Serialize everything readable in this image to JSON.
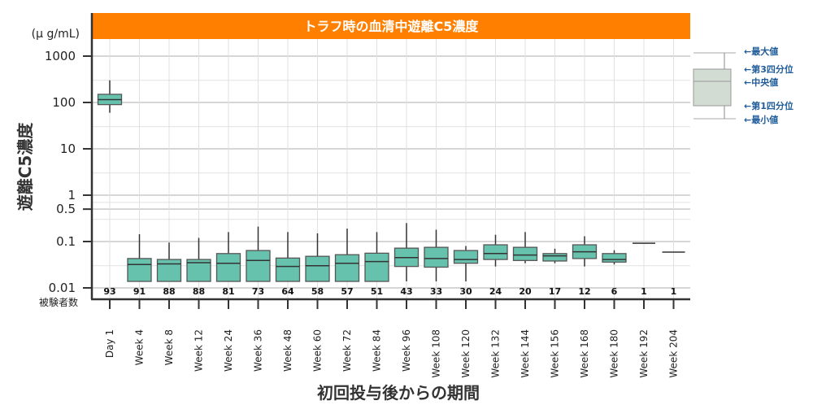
{
  "chart_data": {
    "type": "box",
    "title": "トラフ時の血清中遊離C5濃度",
    "xlabel": "初回投与後からの期間",
    "ylabel": "遊離C5濃度",
    "yunit": "(μ g/mL)",
    "yscale": "log",
    "ylim": [
      0.01,
      2000
    ],
    "yticks": [
      {
        "value": 1000,
        "label": "1000"
      },
      {
        "value": 100,
        "label": "100"
      },
      {
        "value": 10,
        "label": "10"
      },
      {
        "value": 1,
        "label": "1"
      },
      {
        "value": 0.5,
        "label": "0.5"
      },
      {
        "value": 0.1,
        "label": "0.1"
      },
      {
        "value": 0.01,
        "label": "0.01"
      }
    ],
    "grid": true,
    "subjects_label": "被験者数",
    "categories": [
      "Day 1",
      "Week 4",
      "Week 8",
      "Week 12",
      "Week 24",
      "Week 36",
      "Week 48",
      "Week 60",
      "Week 72",
      "Week 84",
      "Week 96",
      "Week 108",
      "Week 120",
      "Week 132",
      "Week 144",
      "Week 156",
      "Week 168",
      "Week 180",
      "Week 192",
      "Week 204"
    ],
    "n": [
      93,
      91,
      88,
      88,
      81,
      73,
      64,
      58,
      57,
      51,
      43,
      33,
      30,
      24,
      20,
      17,
      12,
      6,
      1,
      1
    ],
    "boxes": [
      {
        "min": 60,
        "q1": 90,
        "median": 115,
        "q3": 150,
        "max": 300
      },
      {
        "min": 0.0138,
        "q1": 0.0138,
        "median": 0.032,
        "q3": 0.043,
        "max": 0.144
      },
      {
        "min": 0.0138,
        "q1": 0.0138,
        "median": 0.033,
        "q3": 0.041,
        "max": 0.095
      },
      {
        "min": 0.0138,
        "q1": 0.0138,
        "median": 0.035,
        "q3": 0.041,
        "max": 0.12
      },
      {
        "min": 0.0138,
        "q1": 0.0138,
        "median": 0.034,
        "q3": 0.055,
        "max": 0.16
      },
      {
        "min": 0.0138,
        "q1": 0.0138,
        "median": 0.039,
        "q3": 0.064,
        "max": 0.21
      },
      {
        "min": 0.0138,
        "q1": 0.0138,
        "median": 0.029,
        "q3": 0.044,
        "max": 0.16
      },
      {
        "min": 0.0138,
        "q1": 0.0138,
        "median": 0.03,
        "q3": 0.048,
        "max": 0.15
      },
      {
        "min": 0.0138,
        "q1": 0.0138,
        "median": 0.034,
        "q3": 0.052,
        "max": 0.19
      },
      {
        "min": 0.0138,
        "q1": 0.0138,
        "median": 0.037,
        "q3": 0.056,
        "max": 0.16
      },
      {
        "min": 0.0138,
        "q1": 0.029,
        "median": 0.045,
        "q3": 0.072,
        "max": 0.25
      },
      {
        "min": 0.0138,
        "q1": 0.028,
        "median": 0.043,
        "q3": 0.075,
        "max": 0.18
      },
      {
        "min": 0.0138,
        "q1": 0.034,
        "median": 0.041,
        "q3": 0.064,
        "max": 0.08
      },
      {
        "min": 0.029,
        "q1": 0.041,
        "median": 0.055,
        "q3": 0.085,
        "max": 0.14
      },
      {
        "min": 0.034,
        "q1": 0.039,
        "median": 0.051,
        "q3": 0.075,
        "max": 0.16
      },
      {
        "min": 0.034,
        "q1": 0.038,
        "median": 0.049,
        "q3": 0.055,
        "max": 0.07
      },
      {
        "min": 0.029,
        "q1": 0.043,
        "median": 0.06,
        "q3": 0.085,
        "max": 0.13
      },
      {
        "min": 0.032,
        "q1": 0.036,
        "median": 0.041,
        "q3": 0.055,
        "max": 0.065
      },
      {
        "min": 0.092,
        "q1": 0.092,
        "median": 0.092,
        "q3": 0.092,
        "max": 0.092
      },
      {
        "min": 0.059,
        "q1": 0.059,
        "median": 0.059,
        "q3": 0.059,
        "max": 0.059
      }
    ],
    "box_color": "#66c2ad",
    "title_bar_color": "#ff8000",
    "legend": {
      "position": "right",
      "box_color": "#d2dcd2",
      "items": [
        "←最大値",
        "←第3四分位",
        "←中央値",
        "←第1四分位",
        "←最小値"
      ]
    }
  }
}
